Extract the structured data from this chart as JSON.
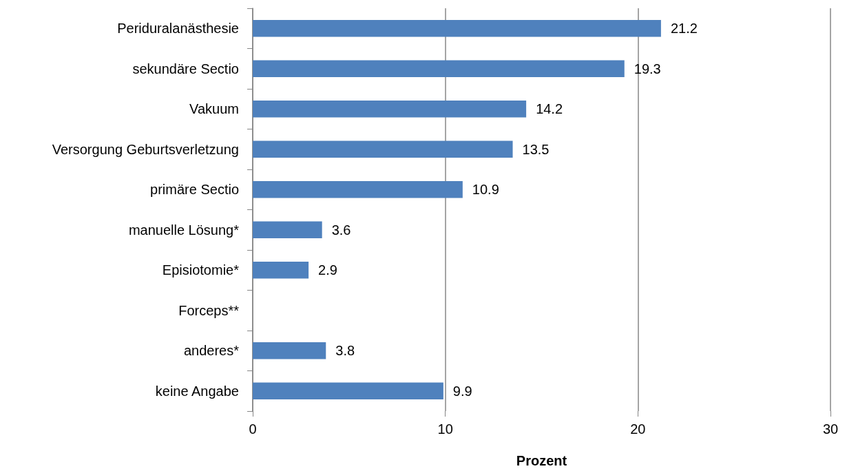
{
  "chart_data": {
    "type": "bar",
    "orientation": "horizontal",
    "xlabel": "Prozent",
    "categories": [
      "Periduralanästhesie",
      "sekundäre Sectio",
      "Vakuum",
      "Versorgung Geburtsverletzung",
      "primäre Sectio",
      "manuelle Lösung*",
      "Episiotomie*",
      "Forceps**",
      "anderes*",
      "keine Angabe"
    ],
    "values": [
      21.2,
      19.3,
      14.2,
      13.5,
      10.9,
      3.6,
      2.9,
      null,
      3.8,
      9.9
    ],
    "color": "#4f81bd",
    "xlim": [
      0,
      30
    ],
    "xticks": [
      0,
      10,
      20,
      30
    ],
    "grid": "x",
    "data_labels": true
  }
}
